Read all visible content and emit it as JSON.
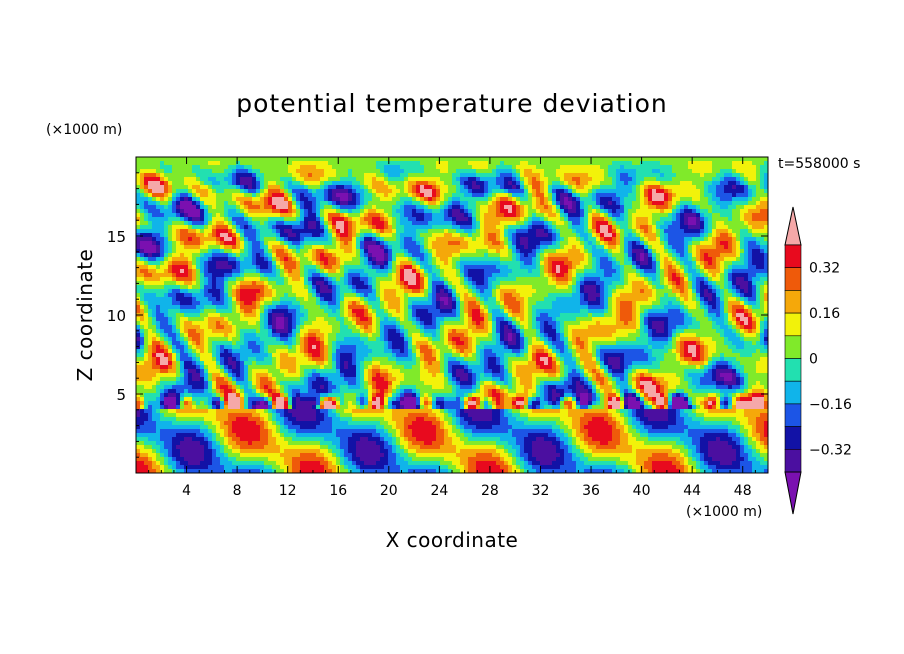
{
  "chart_data": {
    "type": "heatmap",
    "title": "potential temperature deviation",
    "xlabel": "X coordinate",
    "ylabel": "Z coordinate",
    "x_unit": "(×1000 m)",
    "y_unit": "(×1000 m)",
    "time_label": "t=558000 s",
    "xlim": [
      0,
      50
    ],
    "ylim": [
      0,
      20
    ],
    "x_ticks": [
      4,
      8,
      12,
      16,
      20,
      24,
      28,
      32,
      36,
      40,
      44,
      48
    ],
    "y_ticks": [
      5,
      10,
      15
    ],
    "colorbar": {
      "levels": [
        -0.4,
        -0.32,
        -0.24,
        -0.16,
        -0.08,
        0,
        0.08,
        0.16,
        0.24,
        0.32,
        0.4
      ],
      "colors": [
        "#7a10b0",
        "#4b0fa0",
        "#1212a6",
        "#1c55e6",
        "#10b4ea",
        "#22e0b0",
        "#80ea2a",
        "#f2f20a",
        "#f5a80a",
        "#ef5a0a",
        "#e80a1e",
        "#f5a8a8"
      ],
      "tick_labels": [
        "0.32",
        "0.16",
        "0",
        "-0.16",
        "-0.32"
      ],
      "tick_values": [
        0.32,
        0.16,
        0,
        -0.16,
        -0.32
      ]
    }
  }
}
